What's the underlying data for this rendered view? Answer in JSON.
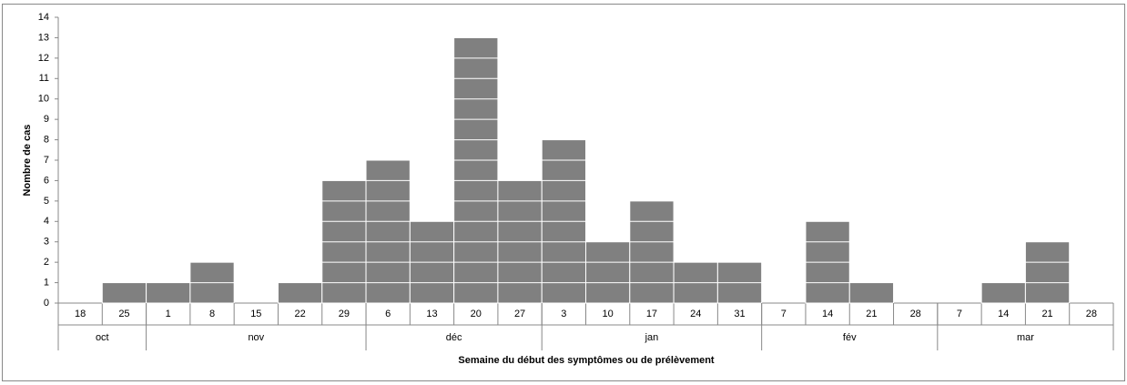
{
  "chart_data": {
    "type": "histogram",
    "y_label": "Nombre de cas",
    "x_label": "Semaine du début des symptômes ou de prélèvement",
    "groups": [
      {
        "label": "oct",
        "categories": [
          "18",
          "25"
        ]
      },
      {
        "label": "nov",
        "categories": [
          "1",
          "8",
          "15",
          "22",
          "29"
        ]
      },
      {
        "label": "déc",
        "categories": [
          "6",
          "13",
          "20",
          "27"
        ]
      },
      {
        "label": "jan",
        "categories": [
          "3",
          "10",
          "17",
          "24",
          "31"
        ]
      },
      {
        "label": "fév",
        "categories": [
          "7",
          "14",
          "21",
          "28"
        ]
      },
      {
        "label": "mar",
        "categories": [
          "7",
          "14",
          "21",
          "28"
        ]
      }
    ],
    "values": [
      0,
      1,
      1,
      2,
      0,
      1,
      6,
      7,
      4,
      13,
      6,
      8,
      3,
      5,
      2,
      2,
      0,
      4,
      1,
      0,
      0,
      1,
      3,
      0
    ],
    "color": "#808080",
    "ylim": [
      0,
      14
    ],
    "yticks": [
      0,
      1,
      2,
      3,
      4,
      5,
      6,
      7,
      8,
      9,
      10,
      11,
      12,
      13,
      14
    ]
  }
}
